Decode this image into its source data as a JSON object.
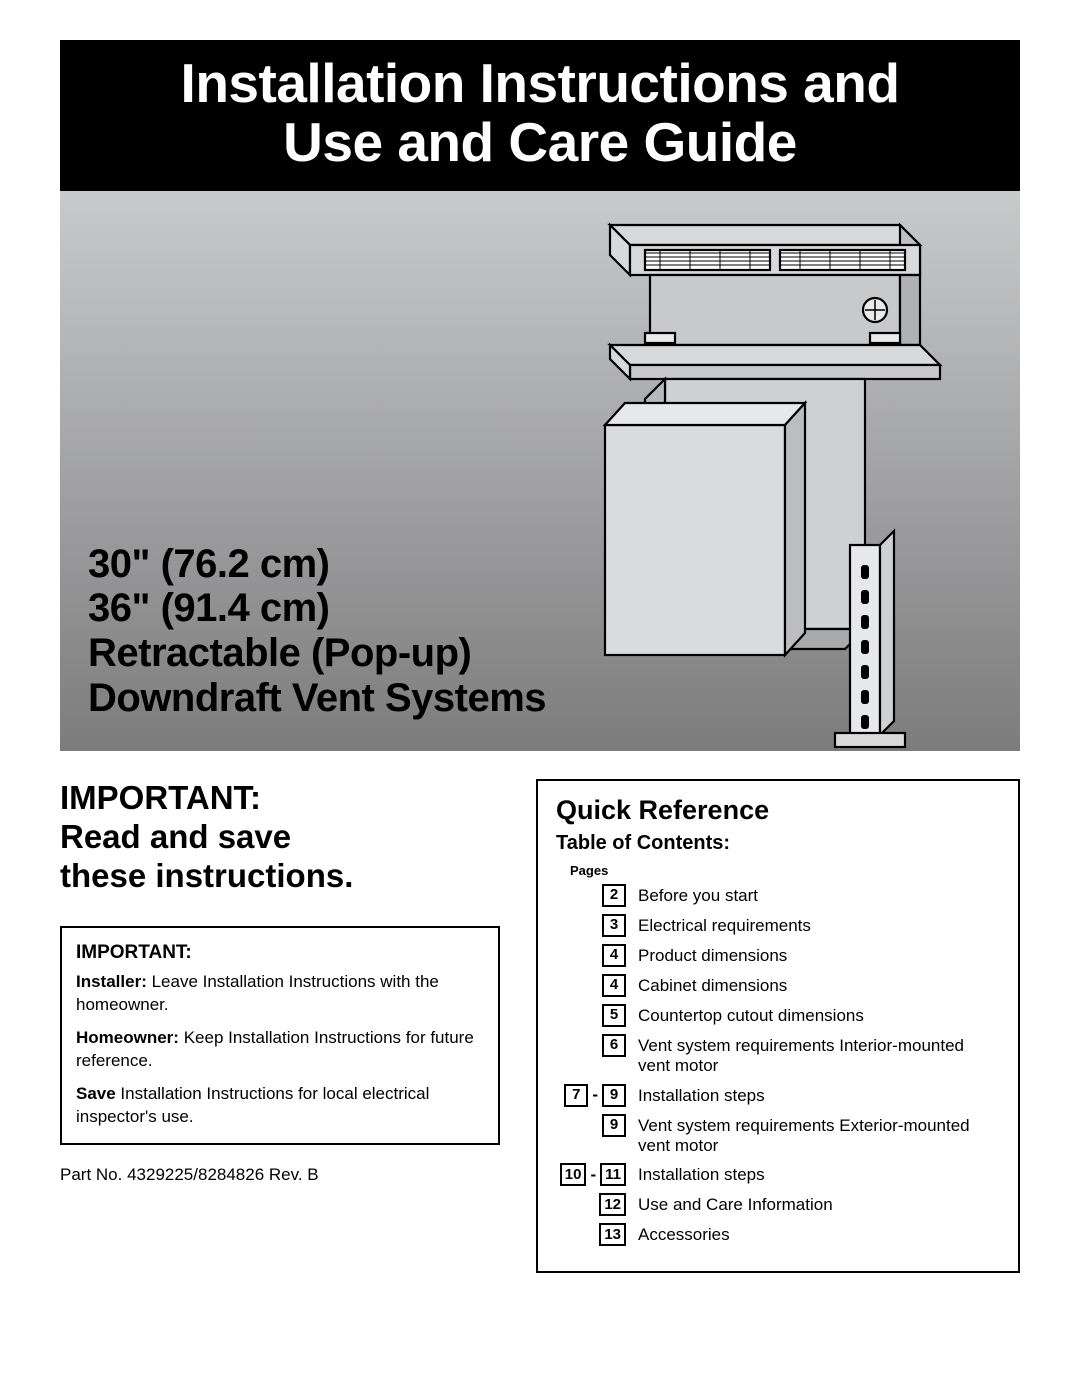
{
  "title": {
    "line1": "Installation Instructions and",
    "line2": "Use and Care Guide"
  },
  "hero": {
    "dim1": "30\" (76.2 cm)",
    "dim2": "36\" (91.4 cm)",
    "name1": "Retractable (Pop-up)",
    "name2": "Downdraft Vent Systems",
    "bg_gradient_top": "#c9cacc",
    "bg_gradient_bottom": "#7c7c7d"
  },
  "important": {
    "head1": "IMPORTANT:",
    "head2": "Read and save",
    "head3": "these instructions.",
    "box_title": "IMPORTANT:",
    "installer_b": "Installer:",
    "installer_t": " Leave Installation Instructions with the homeowner.",
    "homeowner_b": "Homeowner:",
    "homeowner_t": " Keep Installation Instructions for future reference.",
    "save_b": "Save",
    "save_t": " Installation Instructions for local electrical inspector's use."
  },
  "partno": "Part No. 4329225/8284826 Rev. B",
  "quickref": {
    "title": "Quick Reference",
    "toc": "Table of Contents:",
    "pages_lbl": "Pages",
    "items": [
      {
        "pages": [
          "2"
        ],
        "label": "Before you start"
      },
      {
        "pages": [
          "3"
        ],
        "label": "Electrical requirements"
      },
      {
        "pages": [
          "4"
        ],
        "label": "Product dimensions"
      },
      {
        "pages": [
          "4"
        ],
        "label": "Cabinet dimensions"
      },
      {
        "pages": [
          "5"
        ],
        "label": "Countertop cutout dimensions"
      },
      {
        "pages": [
          "6"
        ],
        "label": "Vent system requirements Interior-mounted vent motor"
      },
      {
        "pages": [
          "7",
          "9"
        ],
        "label": "Installation steps"
      },
      {
        "pages": [
          "9"
        ],
        "label": "Vent system requirements Exterior-mounted vent motor"
      },
      {
        "pages": [
          "10",
          "11"
        ],
        "label": "Installation steps"
      },
      {
        "pages": [
          "12"
        ],
        "label": "Use and Care Information"
      },
      {
        "pages": [
          "13"
        ],
        "label": "Accessories"
      }
    ]
  },
  "colors": {
    "banner_bg": "#000000",
    "banner_fg": "#ffffff",
    "border": "#000000",
    "text": "#000000"
  }
}
